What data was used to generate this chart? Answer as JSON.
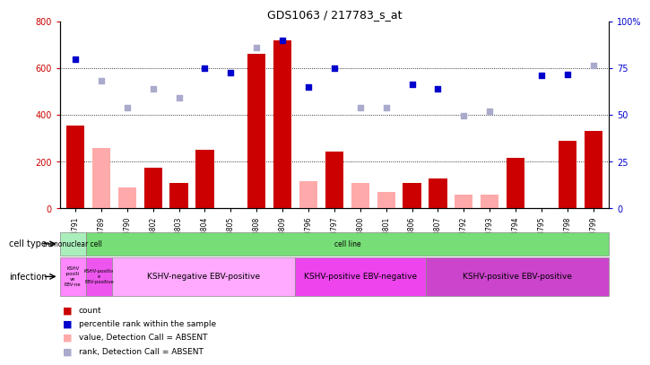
{
  "title": "GDS1063 / 217783_s_at",
  "samples": [
    "GSM38791",
    "GSM38789",
    "GSM38790",
    "GSM38802",
    "GSM38803",
    "GSM38804",
    "GSM38805",
    "GSM38808",
    "GSM38809",
    "GSM38796",
    "GSM38797",
    "GSM38800",
    "GSM38801",
    "GSM38806",
    "GSM38807",
    "GSM38792",
    "GSM38793",
    "GSM38794",
    "GSM38795",
    "GSM38798",
    "GSM38799"
  ],
  "count_present": [
    355,
    0,
    0,
    175,
    110,
    250,
    0,
    660,
    720,
    0,
    245,
    0,
    0,
    110,
    130,
    0,
    0,
    215,
    0,
    290,
    330
  ],
  "count_absent": [
    0,
    260,
    90,
    0,
    0,
    0,
    0,
    0,
    0,
    115,
    0,
    110,
    70,
    0,
    0,
    60,
    60,
    0,
    0,
    0,
    0
  ],
  "percentile_present": [
    640,
    0,
    0,
    0,
    0,
    600,
    580,
    0,
    720,
    520,
    600,
    0,
    0,
    530,
    510,
    0,
    0,
    0,
    570,
    575,
    0
  ],
  "percentile_absent": [
    0,
    545,
    430,
    510,
    475,
    0,
    0,
    690,
    0,
    0,
    0,
    430,
    430,
    0,
    0,
    395,
    415,
    0,
    0,
    0,
    610
  ],
  "count_color_present": "#cc0000",
  "count_color_absent": "#ffaaaa",
  "pct_color_present": "#0000cc",
  "pct_color_absent": "#aaaacc",
  "ylim_left": [
    0,
    800
  ],
  "ylim_right": [
    0,
    100
  ],
  "yticks_left": [
    0,
    200,
    400,
    600,
    800
  ],
  "yticks_right": [
    0,
    25,
    50,
    75,
    100
  ],
  "ytick_right_labels": [
    "0",
    "25",
    "50",
    "75",
    "100%"
  ],
  "cell_type_segments": [
    {
      "text": "mononuclear cell",
      "start": 0,
      "end": 1,
      "color": "#aaeebb"
    },
    {
      "text": "cell line",
      "start": 1,
      "end": 21,
      "color": "#77dd77"
    }
  ],
  "infection_segments": [
    {
      "text": "KSHV\n-positi\nve\nEBV-ne",
      "start": 0,
      "end": 1,
      "color": "#ff88ff"
    },
    {
      "text": "KSHV-positiv\ne\nEBV-positive",
      "start": 1,
      "end": 2,
      "color": "#ee55ee"
    },
    {
      "text": "KSHV-negative EBV-positive",
      "start": 2,
      "end": 9,
      "color": "#ffaaff"
    },
    {
      "text": "KSHV-positive EBV-negative",
      "start": 9,
      "end": 14,
      "color": "#ee44ee"
    },
    {
      "text": "KSHV-positive EBV-positive",
      "start": 14,
      "end": 21,
      "color": "#cc44cc"
    }
  ],
  "legend_items": [
    {
      "label": "count",
      "color": "#cc0000"
    },
    {
      "label": "percentile rank within the sample",
      "color": "#0000cc"
    },
    {
      "label": "value, Detection Call = ABSENT",
      "color": "#ffaaaa"
    },
    {
      "label": "rank, Detection Call = ABSENT",
      "color": "#aaaacc"
    }
  ]
}
